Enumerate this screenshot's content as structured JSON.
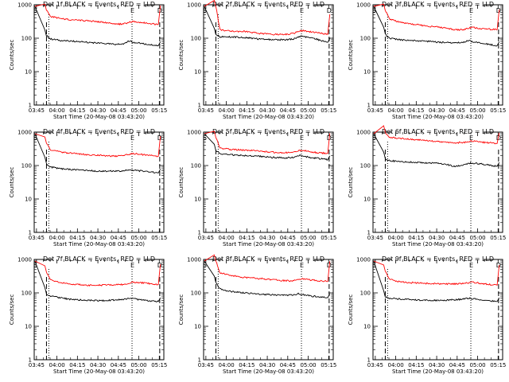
{
  "chart_data": [
    {
      "type": "line",
      "title": "Det 1f BLACK = Events, RED = LLD",
      "xlabel": "Start Time (20-May-08 03:43:20)",
      "ylabel": "Counts/sec",
      "x_ticks": [
        "03:45",
        "04:00",
        "04:15",
        "04:30",
        "04:45",
        "05:00",
        "05:15"
      ],
      "x_range_min": [
        0,
        95
      ],
      "y_ticks": [
        "1",
        "10",
        "100",
        "1000"
      ],
      "ylim": [
        1,
        1000
      ],
      "y_scale": "log",
      "markers": {
        "S": 0.8,
        "E": 72.0,
        "D": 92.0
      },
      "dashed_x": [
        9.0,
        92.0
      ],
      "dotted_x": [
        10.7,
        71.7
      ],
      "series": [
        {
          "name": "Events",
          "color": "#000000",
          "x": [
            9,
            12,
            20,
            30,
            40,
            50,
            60,
            66,
            70,
            72,
            80,
            91
          ],
          "y": [
            120,
            95,
            85,
            80,
            75,
            70,
            65,
            68,
            85,
            75,
            68,
            60
          ]
        },
        {
          "name": "LLD",
          "color": "#ff0000",
          "x": [
            9,
            12,
            20,
            30,
            40,
            50,
            60,
            66,
            70,
            72,
            80,
            91
          ],
          "y": [
            700,
            450,
            380,
            350,
            330,
            300,
            260,
            270,
            300,
            320,
            290,
            260
          ]
        }
      ]
    },
    {
      "type": "line",
      "title": "Det 2f BLACK = Events, RED = LLD",
      "xlabel": "Start Time (20-May-08 03:43:20)",
      "ylabel": "Counts/sec",
      "x_ticks": [
        "03:45",
        "04:00",
        "04:15",
        "04:30",
        "04:45",
        "05:00",
        "05:15"
      ],
      "x_range_min": [
        0,
        95
      ],
      "y_ticks": [
        "1",
        "10",
        "100",
        "1000"
      ],
      "ylim": [
        1,
        1000
      ],
      "y_scale": "log",
      "markers": {
        "S": 0.8,
        "E": 72.0,
        "D": 92.0
      },
      "dashed_x": [
        9.0,
        92.0
      ],
      "dotted_x": [
        10.7,
        71.7
      ],
      "series": [
        {
          "name": "Events",
          "color": "#000000",
          "x": [
            9,
            12,
            20,
            30,
            40,
            50,
            60,
            66,
            70,
            72,
            80,
            91
          ],
          "y": [
            130,
            110,
            110,
            105,
            95,
            90,
            90,
            95,
            110,
            115,
            100,
            75
          ]
        },
        {
          "name": "LLD",
          "color": "#ff0000",
          "x": [
            9,
            12,
            20,
            30,
            40,
            50,
            60,
            66,
            70,
            72,
            80,
            91
          ],
          "y": [
            900,
            180,
            160,
            160,
            140,
            130,
            130,
            140,
            160,
            170,
            150,
            130
          ]
        }
      ]
    },
    {
      "type": "line",
      "title": "Det 3f BLACK = Events, RED = LLD",
      "xlabel": "Start Time (20-May-08 03:43:20)",
      "ylabel": "Counts/sec",
      "x_ticks": [
        "03:45",
        "04:00",
        "04:15",
        "04:30",
        "04:45",
        "05:00",
        "05:15"
      ],
      "x_range_min": [
        0,
        95
      ],
      "y_ticks": [
        "1",
        "10",
        "100",
        "1000"
      ],
      "ylim": [
        1,
        1000
      ],
      "y_scale": "log",
      "markers": {
        "S": 0.8,
        "E": 72.0,
        "D": 92.0
      },
      "dashed_x": [
        9.0,
        92.0
      ],
      "dotted_x": [
        10.7,
        71.7
      ],
      "series": [
        {
          "name": "Events",
          "color": "#000000",
          "x": [
            9,
            12,
            20,
            30,
            40,
            50,
            60,
            66,
            70,
            72,
            80,
            91
          ],
          "y": [
            130,
            100,
            90,
            85,
            80,
            75,
            72,
            75,
            85,
            80,
            70,
            60
          ]
        },
        {
          "name": "LLD",
          "color": "#ff0000",
          "x": [
            9,
            12,
            20,
            30,
            40,
            50,
            60,
            66,
            70,
            72,
            80,
            91
          ],
          "y": [
            700,
            380,
            300,
            260,
            230,
            210,
            180,
            180,
            200,
            210,
            190,
            180
          ]
        }
      ]
    },
    {
      "type": "line",
      "title": "Det 4f BLACK = Events, RED = LLD",
      "xlabel": "Start Time (20-May-08 03:43:20)",
      "ylabel": "Counts/sec",
      "x_ticks": [
        "03:45",
        "04:00",
        "04:15",
        "04:30",
        "04:45",
        "05:00",
        "05:15"
      ],
      "x_range_min": [
        0,
        95
      ],
      "y_ticks": [
        "1",
        "10",
        "100",
        "1000"
      ],
      "ylim": [
        1,
        1000
      ],
      "y_scale": "log",
      "markers": {
        "S": 0.8,
        "E": 72.0,
        "D": 92.0
      },
      "dashed_x": [
        9.0,
        92.0
      ],
      "dotted_x": [
        10.7,
        71.7
      ],
      "series": [
        {
          "name": "Events",
          "color": "#000000",
          "x": [
            9,
            12,
            20,
            30,
            40,
            50,
            60,
            66,
            70,
            72,
            80,
            91
          ],
          "y": [
            110,
            90,
            80,
            75,
            70,
            68,
            68,
            70,
            75,
            72,
            68,
            60
          ]
        },
        {
          "name": "LLD",
          "color": "#ff0000",
          "x": [
            9,
            12,
            20,
            30,
            40,
            50,
            60,
            66,
            70,
            72,
            80,
            91
          ],
          "y": [
            450,
            300,
            250,
            230,
            210,
            200,
            190,
            200,
            220,
            230,
            210,
            190
          ]
        }
      ]
    },
    {
      "type": "line",
      "title": "Det 5f BLACK = Events, RED = LLD",
      "xlabel": "Start Time (20-May-08 03:43:20)",
      "ylabel": "Counts/sec",
      "x_ticks": [
        "03:45",
        "04:00",
        "04:15",
        "04:30",
        "04:45",
        "05:00",
        "05:15"
      ],
      "x_range_min": [
        0,
        95
      ],
      "y_ticks": [
        "1",
        "10",
        "100",
        "1000"
      ],
      "ylim": [
        1,
        1000
      ],
      "y_scale": "log",
      "markers": {
        "S": 0.8,
        "E": 72.0,
        "D": 92.0
      },
      "dashed_x": [
        9.0,
        92.0
      ],
      "dotted_x": [
        10.7,
        71.7
      ],
      "series": [
        {
          "name": "Events",
          "color": "#000000",
          "x": [
            9,
            12,
            20,
            30,
            40,
            50,
            60,
            66,
            70,
            72,
            80,
            91
          ],
          "y": [
            280,
            230,
            210,
            200,
            190,
            175,
            170,
            175,
            200,
            195,
            170,
            150
          ]
        },
        {
          "name": "LLD",
          "color": "#ff0000",
          "x": [
            9,
            12,
            20,
            30,
            40,
            50,
            60,
            66,
            70,
            72,
            80,
            91
          ],
          "y": [
            700,
            330,
            300,
            290,
            270,
            250,
            240,
            250,
            280,
            290,
            250,
            230
          ]
        }
      ]
    },
    {
      "type": "line",
      "title": "Det 6f BLACK = Events, RED = LLD",
      "xlabel": "Start Time (20-May-08 03:43:20)",
      "ylabel": "Counts/sec",
      "x_ticks": [
        "03:45",
        "04:00",
        "04:15",
        "04:30",
        "04:45",
        "05:00",
        "05:15"
      ],
      "x_range_min": [
        0,
        95
      ],
      "y_ticks": [
        "1",
        "10",
        "100",
        "1000"
      ],
      "ylim": [
        1,
        1000
      ],
      "y_scale": "log",
      "markers": {
        "S": 0.8,
        "E": 72.0,
        "D": 92.0
      },
      "dashed_x": [
        9.0,
        92.0
      ],
      "dotted_x": [
        10.7,
        71.7
      ],
      "series": [
        {
          "name": "Events",
          "color": "#000000",
          "x": [
            9,
            12,
            20,
            30,
            40,
            50,
            60,
            66,
            70,
            72,
            80,
            91
          ],
          "y": [
            160,
            140,
            130,
            125,
            120,
            115,
            95,
            100,
            115,
            120,
            110,
            95
          ]
        },
        {
          "name": "LLD",
          "color": "#ff0000",
          "x": [
            9,
            12,
            20,
            30,
            40,
            50,
            60,
            66,
            70,
            72,
            80,
            91
          ],
          "y": [
            950,
            700,
            650,
            600,
            550,
            520,
            480,
            490,
            520,
            540,
            500,
            460
          ]
        }
      ]
    },
    {
      "type": "line",
      "title": "Det 7f BLACK = Events, RED = LLD",
      "xlabel": "Start Time (20-May-08 03:43:20)",
      "ylabel": "Counts/sec",
      "x_ticks": [
        "03:45",
        "04:00",
        "04:15",
        "04:30",
        "04:45",
        "05:00",
        "05:15"
      ],
      "x_range_min": [
        0,
        95
      ],
      "y_ticks": [
        "1",
        "10",
        "100",
        "1000"
      ],
      "ylim": [
        1,
        1000
      ],
      "y_scale": "log",
      "markers": {
        "S": 0.8,
        "E": 72.0,
        "D": 92.0
      },
      "dashed_x": [
        9.0,
        92.0
      ],
      "dotted_x": [
        10.7,
        71.7
      ],
      "series": [
        {
          "name": "Events",
          "color": "#000000",
          "x": [
            9,
            12,
            20,
            30,
            40,
            50,
            60,
            66,
            70,
            72,
            80,
            91
          ],
          "y": [
            90,
            80,
            70,
            62,
            60,
            58,
            62,
            65,
            70,
            68,
            60,
            55
          ]
        },
        {
          "name": "LLD",
          "color": "#ff0000",
          "x": [
            9,
            12,
            20,
            30,
            40,
            50,
            60,
            66,
            70,
            72,
            80,
            91
          ],
          "y": [
            400,
            250,
            200,
            180,
            170,
            170,
            175,
            180,
            200,
            210,
            200,
            180
          ]
        }
      ]
    },
    {
      "type": "line",
      "title": "Det 8f BLACK = Events, RED = LLD",
      "xlabel": "Start Time (20-May-08 03:43:20)",
      "ylabel": "Counts/sec",
      "x_ticks": [
        "03:45",
        "04:00",
        "04:15",
        "04:30",
        "04:45",
        "05:00",
        "05:15"
      ],
      "x_range_min": [
        0,
        95
      ],
      "y_ticks": [
        "1",
        "10",
        "100",
        "1000"
      ],
      "ylim": [
        1,
        1000
      ],
      "y_scale": "log",
      "markers": {
        "S": 0.8,
        "E": 72.0,
        "D": 92.0
      },
      "dashed_x": [
        9.0,
        92.0
      ],
      "dotted_x": [
        10.7,
        71.7
      ],
      "series": [
        {
          "name": "Events",
          "color": "#000000",
          "x": [
            9,
            12,
            20,
            30,
            40,
            50,
            60,
            66,
            70,
            72,
            80,
            91
          ],
          "y": [
            200,
            130,
            110,
            100,
            92,
            88,
            85,
            87,
            95,
            90,
            80,
            72
          ]
        },
        {
          "name": "LLD",
          "color": "#ff0000",
          "x": [
            9,
            12,
            20,
            30,
            40,
            50,
            60,
            66,
            70,
            72,
            80,
            91
          ],
          "y": [
            900,
            400,
            330,
            290,
            270,
            250,
            230,
            230,
            250,
            260,
            240,
            220
          ]
        }
      ]
    },
    {
      "type": "line",
      "title": "Det 9f BLACK = Events, RED = LLD",
      "xlabel": "Start Time (20-May-08 03:43:20)",
      "ylabel": "Counts/sec",
      "x_ticks": [
        "03:45",
        "04:00",
        "04:15",
        "04:30",
        "04:45",
        "05:00",
        "05:15"
      ],
      "x_range_min": [
        0,
        95
      ],
      "y_ticks": [
        "1",
        "10",
        "100",
        "1000"
      ],
      "ylim": [
        1,
        1000
      ],
      "y_scale": "log",
      "markers": {
        "S": 0.8,
        "E": 72.0,
        "D": 92.0
      },
      "dashed_x": [
        9.0,
        92.0
      ],
      "dotted_x": [
        10.7,
        71.7
      ],
      "series": [
        {
          "name": "Events",
          "color": "#000000",
          "x": [
            9,
            12,
            20,
            30,
            40,
            50,
            60,
            66,
            70,
            72,
            80,
            91
          ],
          "y": [
            75,
            70,
            65,
            62,
            60,
            60,
            62,
            65,
            70,
            68,
            62,
            55
          ]
        },
        {
          "name": "LLD",
          "color": "#ff0000",
          "x": [
            9,
            12,
            20,
            30,
            40,
            50,
            60,
            66,
            70,
            72,
            80,
            91
          ],
          "y": [
            450,
            260,
            210,
            200,
            190,
            185,
            185,
            190,
            200,
            210,
            190,
            170
          ]
        }
      ]
    }
  ]
}
